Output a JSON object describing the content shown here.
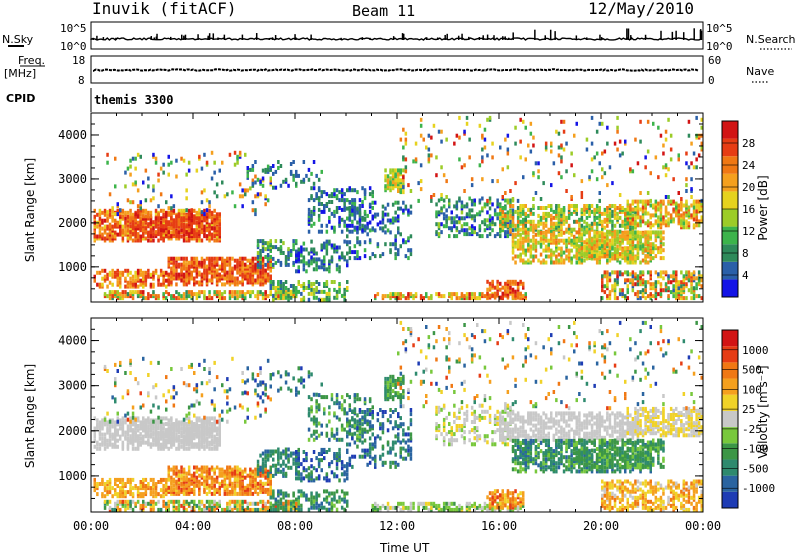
{
  "header": {
    "station": "Inuvik (fitACF)",
    "beam": "Beam 11",
    "date": "12/May/2010"
  },
  "strip_panels": {
    "nsky_label": "N.Sky",
    "nsky_ticks": [
      "10^5",
      "10^0"
    ],
    "nsearch_label": "N.Search",
    "nsearch_ticks": [
      "10^5",
      "10^0"
    ],
    "freq_label": "Freq.",
    "freq_unit": "[MHz]",
    "freq_ticks": [
      "18",
      "8"
    ],
    "nave_label": "Nave",
    "nave_ticks": [
      "60",
      "0"
    ],
    "cpid_label": "CPID",
    "cpid_value": "themis 3300"
  },
  "time_axis": {
    "ticks": [
      "00:00",
      "04:00",
      "08:00",
      "12:00",
      "16:00",
      "20:00",
      "00:00"
    ],
    "label": "Time UT"
  },
  "chart_data": [
    {
      "type": "heatmap",
      "panel": "power",
      "ylabel": "Slant Range [km]",
      "yticks": [
        1000,
        2000,
        3000,
        4000
      ],
      "ylim": [
        200,
        4500
      ],
      "xlim": [
        0,
        24
      ],
      "colorbar": {
        "label": "Power [dB]",
        "ticks": [
          "28",
          "24",
          "20",
          "16",
          "12",
          "8",
          "4"
        ],
        "colors": [
          "#1414e6",
          "#2a5fa8",
          "#2e8a5a",
          "#3cb44b",
          "#9ccc28",
          "#e6d21e",
          "#f5a01e",
          "#f07814",
          "#e63c14",
          "#d21414"
        ]
      }
    },
    {
      "type": "heatmap",
      "panel": "velocity",
      "ylabel": "Slant Range [km]",
      "yticks": [
        1000,
        2000,
        3000,
        4000
      ],
      "ylim": [
        200,
        4500
      ],
      "xlim": [
        0,
        24
      ],
      "colorbar": {
        "label": "Velocity [m s⁻¹]",
        "ticks": [
          "1000",
          "500",
          "100",
          "25",
          "-25",
          "-100",
          "-500",
          "-1000"
        ],
        "colors": [
          "#1e3cb4",
          "#2a64a0",
          "#2e8a6e",
          "#3c9646",
          "#78c83c",
          "#c8c8c8",
          "#f0d228",
          "#f5a01e",
          "#f07814",
          "#e63c14",
          "#d21414"
        ]
      }
    }
  ]
}
